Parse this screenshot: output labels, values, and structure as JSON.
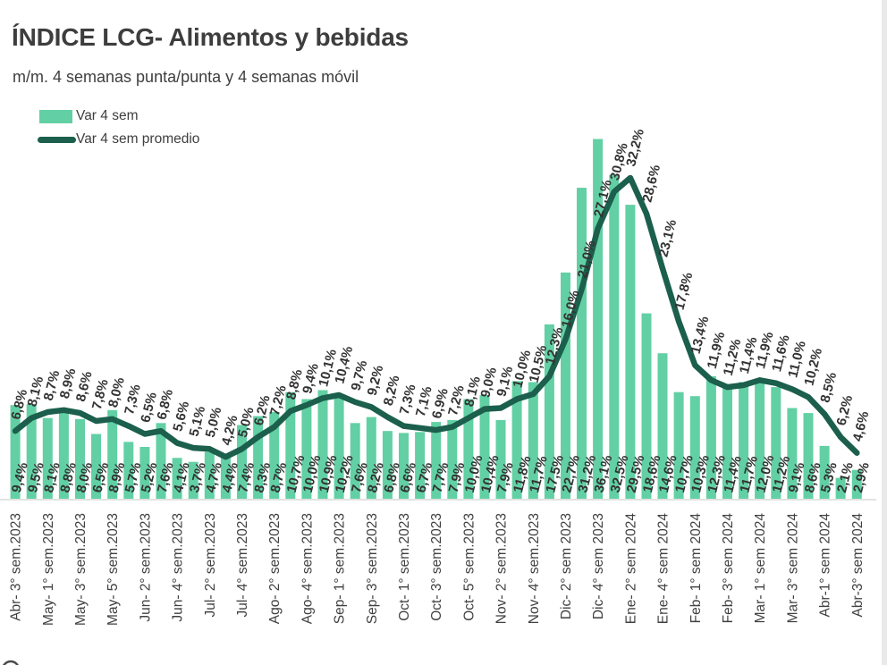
{
  "page": {
    "title": "ÍNDICE LCG- Alimentos y bebidas",
    "subtitle": "m/m. 4 semanas punta/punta y 4 semanas móvil"
  },
  "chart_data": {
    "type": "bar+line",
    "title": "ÍNDICE LCG- Alimentos y bebidas",
    "subtitle": "m/m. 4 semanas punta/punta y 4 semanas móvil",
    "ylim": [
      0,
      38
    ],
    "grid": false,
    "legend_position": "top-left",
    "value_label_format": "one decimal, decimal comma, percent sign (e.g. 9,4%)",
    "axis_color": "#D9D9D9",
    "label_color": "#333333",
    "tick_color": "#404040",
    "x_tick_every": 2,
    "x_tick_labels": [
      "Abr- 3° sem.2023",
      "May- 1° sem.2023",
      "May- 3° sem.2023",
      "May- 5° sem.2023",
      "Jun- 2° sem.2023",
      "Jun- 4° sem.2023",
      "Jul- 2° sem.2023",
      "Jul- 4° sem.2023",
      "Ago- 2° sem.2023",
      "Ago- 4° sem.2023",
      "Sep- 1° sem.2023",
      "Sep- 3° sem.2023",
      "Oct- 1° sem.2023",
      "Oct- 3° sem.2023",
      "Oct- 5° sem.2023",
      "Nov- 2° sem.2023",
      "Nov- 4° sem.2023",
      "Dic- 2° sem 2023",
      "Dic- 4° sem 2023",
      "Ene- 2° sem 2024",
      "Ene- 4° sem 2024",
      "Feb- 1° sem 2024",
      "Feb- 3° sem 2024",
      "Mar- 1° sem 2024",
      "Mar- 3° sem 2024",
      "Abr-1° sem 2024",
      "Abr-3° sem 2024"
    ],
    "series": [
      {
        "name": "Var 4 sem",
        "type": "bar",
        "color": "#62D0A4",
        "values": [
          9.4,
          9.5,
          8.1,
          8.8,
          8.0,
          6.5,
          8.9,
          5.7,
          5.2,
          7.6,
          4.1,
          3.7,
          4.7,
          4.4,
          7.4,
          8.3,
          8.7,
          10.7,
          10.0,
          10.9,
          10.2,
          7.6,
          8.2,
          6.8,
          6.6,
          6.7,
          7.7,
          7.9,
          10.0,
          10.4,
          7.9,
          11.8,
          11.7,
          17.5,
          22.7,
          31.2,
          36.1,
          32.5,
          29.5,
          18.6,
          14.6,
          10.7,
          10.3,
          12.3,
          11.4,
          11.7,
          12.0,
          11.2,
          9.1,
          8.6,
          5.3,
          2.1,
          2.9
        ]
      },
      {
        "name": "Var 4 sem promedio",
        "type": "line",
        "color": "#1B5F4C",
        "values": [
          6.8,
          8.1,
          8.7,
          8.9,
          8.6,
          7.8,
          8.0,
          7.3,
          6.5,
          6.8,
          5.6,
          5.1,
          5.0,
          4.2,
          5.0,
          6.2,
          7.2,
          8.8,
          9.4,
          10.1,
          10.4,
          9.7,
          9.2,
          8.2,
          7.3,
          7.1,
          6.9,
          7.2,
          8.1,
          9.0,
          9.1,
          10.0,
          10.5,
          12.3,
          16.0,
          21.0,
          27.1,
          30.8,
          32.2,
          28.6,
          23.1,
          17.8,
          13.4,
          11.9,
          11.2,
          11.4,
          11.9,
          11.6,
          11.0,
          10.2,
          8.5,
          6.2,
          4.6
        ]
      }
    ]
  }
}
